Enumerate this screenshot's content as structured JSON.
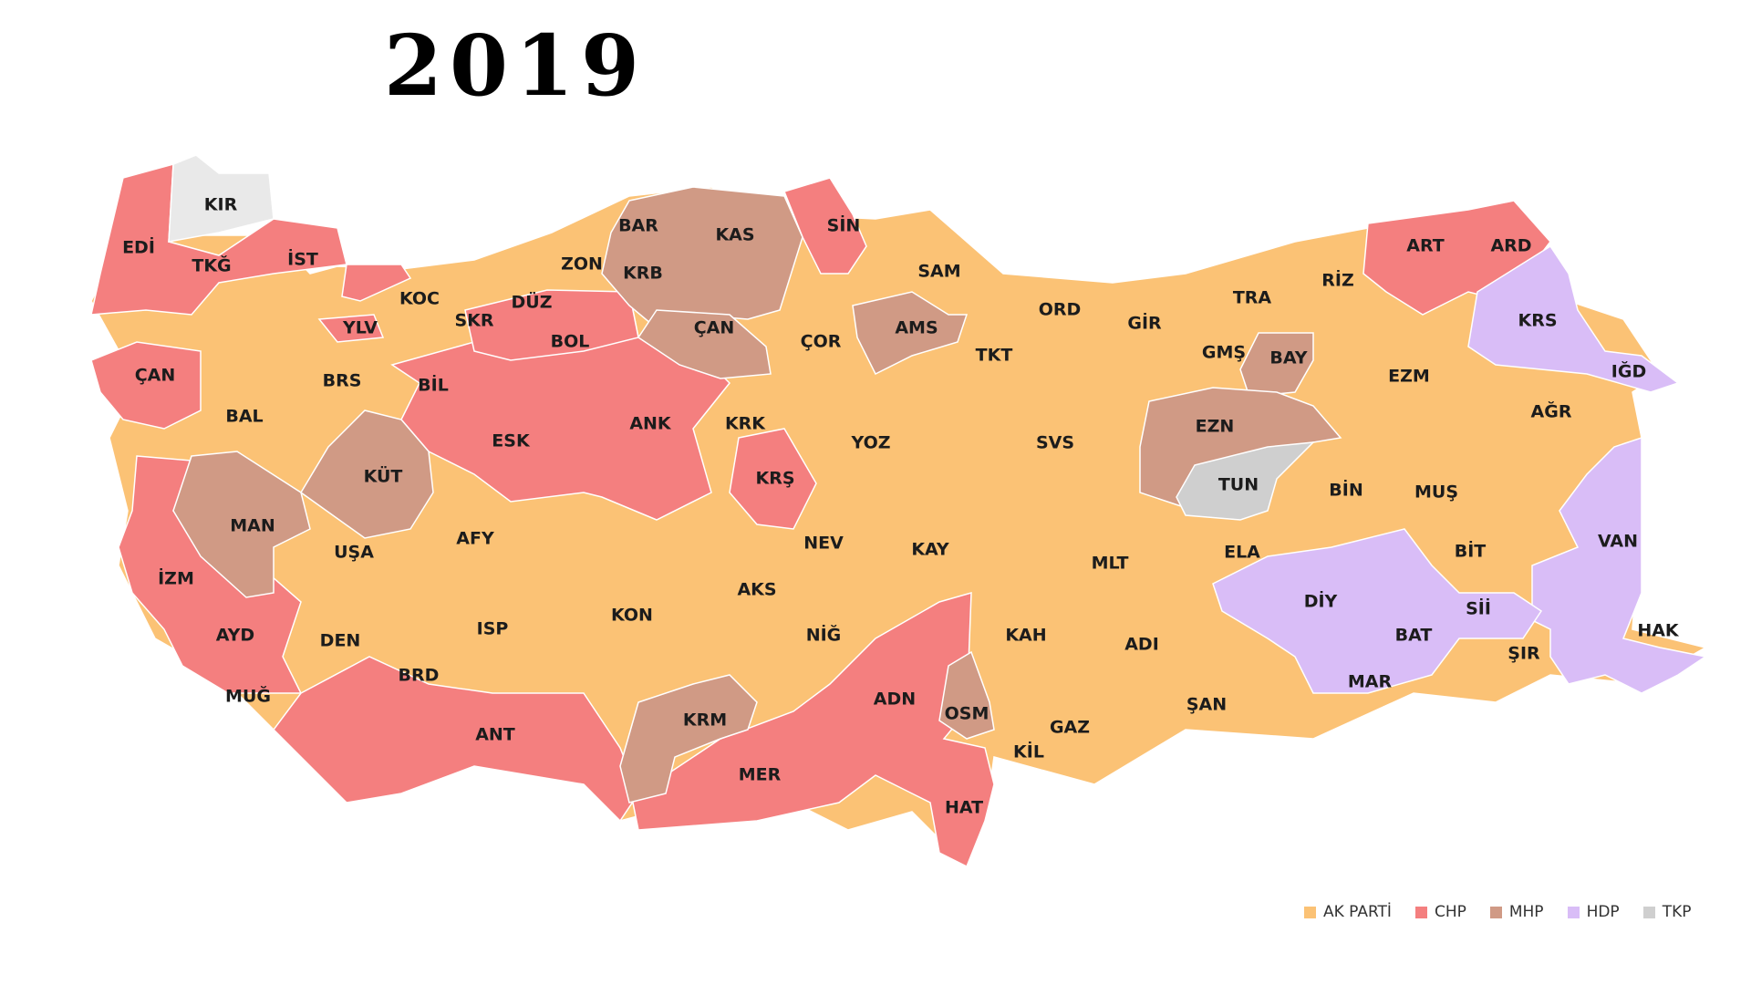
{
  "title": "2019",
  "parties": {
    "akp": {
      "name": "AK PARTİ",
      "color": "#fbc275"
    },
    "chp": {
      "name": "CHP",
      "color": "#f47f7f"
    },
    "mhp": {
      "name": "MHP",
      "color": "#d09a85"
    },
    "hdp": {
      "name": "HDP",
      "color": "#d9bdf7"
    },
    "tkp": {
      "name": "TKP",
      "color": "#cfcfcf"
    }
  },
  "legend_order": [
    "akp",
    "chp",
    "mhp",
    "hdp",
    "tkp"
  ],
  "provinces": [
    {
      "code": "EDİ",
      "party": "chp"
    },
    {
      "code": "KIR",
      "party": "tkp"
    },
    {
      "code": "TKĞ",
      "party": "chp"
    },
    {
      "code": "İST",
      "party": "chp"
    },
    {
      "code": "ÇAN",
      "party": "chp"
    },
    {
      "code": "YLV",
      "party": "chp"
    },
    {
      "code": "KOC",
      "party": "akp"
    },
    {
      "code": "SKR",
      "party": "akp"
    },
    {
      "code": "DÜZ",
      "party": "akp"
    },
    {
      "code": "ZON",
      "party": "akp"
    },
    {
      "code": "BAR",
      "party": "mhp"
    },
    {
      "code": "KRB",
      "party": "mhp"
    },
    {
      "code": "KAS",
      "party": "mhp"
    },
    {
      "code": "SİN",
      "party": "chp"
    },
    {
      "code": "SAM",
      "party": "akp"
    },
    {
      "code": "BOL",
      "party": "chp"
    },
    {
      "code": "ÇAN",
      "party": "mhp"
    },
    {
      "code": "ÇOR",
      "party": "akp"
    },
    {
      "code": "AMS",
      "party": "mhp"
    },
    {
      "code": "TKT",
      "party": "akp"
    },
    {
      "code": "ORD",
      "party": "akp"
    },
    {
      "code": "GİR",
      "party": "akp"
    },
    {
      "code": "TRA",
      "party": "akp"
    },
    {
      "code": "RİZ",
      "party": "akp"
    },
    {
      "code": "ART",
      "party": "chp"
    },
    {
      "code": "ARD",
      "party": "chp"
    },
    {
      "code": "KRS",
      "party": "hdp"
    },
    {
      "code": "IĞD",
      "party": "hdp"
    },
    {
      "code": "GMŞ",
      "party": "akp"
    },
    {
      "code": "BAY",
      "party": "mhp"
    },
    {
      "code": "EZM",
      "party": "akp"
    },
    {
      "code": "AĞR",
      "party": "akp"
    },
    {
      "code": "BAL",
      "party": "akp"
    },
    {
      "code": "BRS",
      "party": "akp"
    },
    {
      "code": "BİL",
      "party": "chp"
    },
    {
      "code": "ESK",
      "party": "chp"
    },
    {
      "code": "ANK",
      "party": "chp"
    },
    {
      "code": "KRK",
      "party": "akp"
    },
    {
      "code": "YOZ",
      "party": "akp"
    },
    {
      "code": "SVS",
      "party": "akp"
    },
    {
      "code": "EZN",
      "party": "mhp"
    },
    {
      "code": "TUN",
      "party": "tkp"
    },
    {
      "code": "BİN",
      "party": "akp"
    },
    {
      "code": "MUŞ",
      "party": "akp"
    },
    {
      "code": "KÜT",
      "party": "mhp"
    },
    {
      "code": "MAN",
      "party": "mhp"
    },
    {
      "code": "İZM",
      "party": "chp"
    },
    {
      "code": "UŞA",
      "party": "akp"
    },
    {
      "code": "AFY",
      "party": "akp"
    },
    {
      "code": "KRŞ",
      "party": "chp"
    },
    {
      "code": "NEV",
      "party": "akp"
    },
    {
      "code": "KAY",
      "party": "akp"
    },
    {
      "code": "ELA",
      "party": "akp"
    },
    {
      "code": "MLT",
      "party": "akp"
    },
    {
      "code": "BİT",
      "party": "akp"
    },
    {
      "code": "VAN",
      "party": "hdp"
    },
    {
      "code": "AYD",
      "party": "chp"
    },
    {
      "code": "DEN",
      "party": "akp"
    },
    {
      "code": "ISP",
      "party": "akp"
    },
    {
      "code": "KON",
      "party": "akp"
    },
    {
      "code": "AKS",
      "party": "akp"
    },
    {
      "code": "NİĞ",
      "party": "akp"
    },
    {
      "code": "DİY",
      "party": "hdp"
    },
    {
      "code": "Sİİ",
      "party": "hdp"
    },
    {
      "code": "BAT",
      "party": "hdp"
    },
    {
      "code": "HAK",
      "party": "hdp"
    },
    {
      "code": "MUĞ",
      "party": "chp"
    },
    {
      "code": "BRD",
      "party": "chp"
    },
    {
      "code": "ANT",
      "party": "chp"
    },
    {
      "code": "KRM",
      "party": "mhp"
    },
    {
      "code": "MER",
      "party": "chp"
    },
    {
      "code": "ADN",
      "party": "chp"
    },
    {
      "code": "OSM",
      "party": "mhp"
    },
    {
      "code": "KAH",
      "party": "akp"
    },
    {
      "code": "ADI",
      "party": "akp"
    },
    {
      "code": "GAZ",
      "party": "akp"
    },
    {
      "code": "KİL",
      "party": "akp"
    },
    {
      "code": "ŞAN",
      "party": "akp"
    },
    {
      "code": "MAR",
      "party": "hdp"
    },
    {
      "code": "ŞIR",
      "party": "akp"
    },
    {
      "code": "HAT",
      "party": "chp"
    }
  ]
}
